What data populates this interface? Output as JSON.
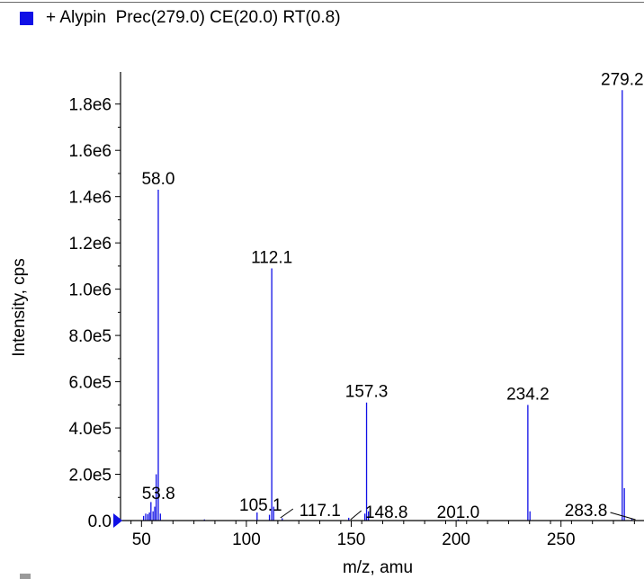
{
  "header": {
    "title": "+ Alypin  Prec(279.0) CE(20.0) RT(0.8)"
  },
  "colors": {
    "series": "#1010e6",
    "axis": "#000000"
  },
  "chart_data": {
    "type": "bar",
    "title": "+ Alypin  Prec(279.0) CE(20.0) RT(0.8)",
    "xlabel": "m/z, amu",
    "ylabel": "Intensity, cps",
    "xlim": [
      40,
      287
    ],
    "ylim": [
      0,
      1900000
    ],
    "x_ticks": [
      {
        "value": 50,
        "label": "50"
      },
      {
        "value": 100,
        "label": "100"
      },
      {
        "value": 150,
        "label": "150"
      },
      {
        "value": 200,
        "label": "200"
      },
      {
        "value": 250,
        "label": "250"
      }
    ],
    "y_ticks": [
      {
        "value": 0,
        "label": "0.0"
      },
      {
        "value": 200000,
        "label": "2.0e5"
      },
      {
        "value": 400000,
        "label": "4.0e5"
      },
      {
        "value": 600000,
        "label": "6.0e5"
      },
      {
        "value": 800000,
        "label": "8.0e5"
      },
      {
        "value": 1000000,
        "label": "1.0e6"
      },
      {
        "value": 1200000,
        "label": "1.2e6"
      },
      {
        "value": 1400000,
        "label": "1.4e6"
      },
      {
        "value": 1600000,
        "label": "1.6e6"
      },
      {
        "value": 1800000,
        "label": "1.8e6"
      }
    ],
    "peaks": [
      {
        "mz": 51.0,
        "intensity": 20000
      },
      {
        "mz": 52.0,
        "intensity": 30000
      },
      {
        "mz": 53.0,
        "intensity": 28000
      },
      {
        "mz": 53.8,
        "intensity": 35000
      },
      {
        "mz": 54.5,
        "intensity": 80000
      },
      {
        "mz": 55.5,
        "intensity": 40000
      },
      {
        "mz": 56.3,
        "intensity": 60000
      },
      {
        "mz": 57.0,
        "intensity": 200000
      },
      {
        "mz": 58.0,
        "intensity": 1430000
      },
      {
        "mz": 59.0,
        "intensity": 30000
      },
      {
        "mz": 80.0,
        "intensity": 5000
      },
      {
        "mz": 105.1,
        "intensity": 35000
      },
      {
        "mz": 111.0,
        "intensity": 25000
      },
      {
        "mz": 112.1,
        "intensity": 1090000
      },
      {
        "mz": 113.0,
        "intensity": 60000
      },
      {
        "mz": 117.1,
        "intensity": 10000
      },
      {
        "mz": 148.8,
        "intensity": 12000
      },
      {
        "mz": 156.5,
        "intensity": 30000
      },
      {
        "mz": 157.3,
        "intensity": 510000
      },
      {
        "mz": 158.2,
        "intensity": 40000
      },
      {
        "mz": 201.0,
        "intensity": 5000
      },
      {
        "mz": 234.2,
        "intensity": 500000
      },
      {
        "mz": 235.2,
        "intensity": 40000
      },
      {
        "mz": 279.2,
        "intensity": 1860000
      },
      {
        "mz": 280.2,
        "intensity": 140000
      },
      {
        "mz": 283.8,
        "intensity": 8000
      }
    ],
    "peak_labels": [
      {
        "mz": 58.0,
        "label": "58.0"
      },
      {
        "mz": 112.1,
        "label": "112.1"
      },
      {
        "mz": 157.3,
        "label": "157.3"
      },
      {
        "mz": 234.2,
        "label": "234.2"
      },
      {
        "mz": 279.2,
        "label": "279.2"
      },
      {
        "mz": 53.8,
        "label": "53.8"
      },
      {
        "mz": 105.1,
        "label": "105.1"
      },
      {
        "mz": 117.1,
        "label": "117.1"
      },
      {
        "mz": 148.8,
        "label": "148.8"
      },
      {
        "mz": 201.0,
        "label": "201.0"
      },
      {
        "mz": 283.8,
        "label": "283.8"
      }
    ]
  }
}
